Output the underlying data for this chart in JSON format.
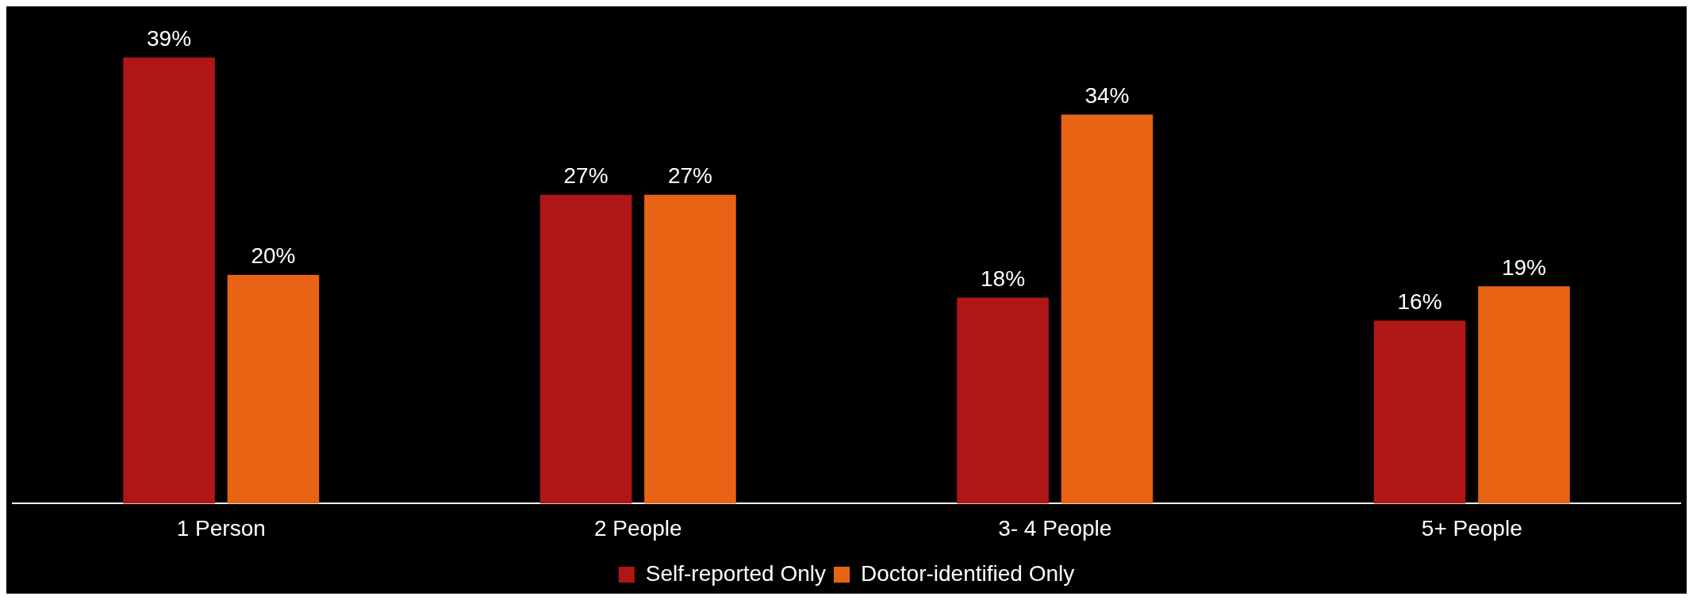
{
  "chart_data": {
    "type": "bar",
    "categories": [
      "1 Person",
      "2 People",
      "3- 4 People",
      "5+ People"
    ],
    "series": [
      {
        "name": "Self-reported Only",
        "color": "#b01616",
        "values": [
          39,
          27,
          18,
          16
        ],
        "value_labels": [
          "39%",
          "27%",
          "18%",
          "16%"
        ]
      },
      {
        "name": "Doctor-identified Only",
        "color": "#e86414",
        "values": [
          20,
          27,
          34,
          19
        ],
        "value_labels": [
          "20%",
          "27%",
          "34%",
          "19%"
        ]
      }
    ],
    "tick_labels": "x",
    "grid": false,
    "legend": "bottom"
  }
}
